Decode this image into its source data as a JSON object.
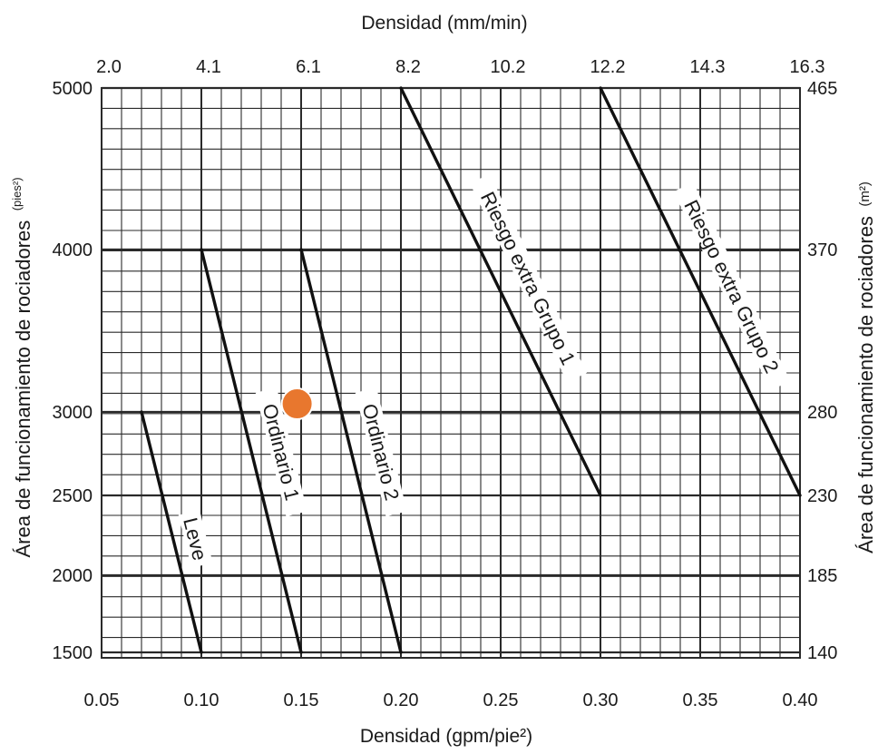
{
  "chart_data": {
    "type": "line",
    "title": "",
    "x_bottom": {
      "label": "Densidad (gpm/pie²)",
      "range": [
        0.05,
        0.4
      ],
      "ticks": [
        0.05,
        0.1,
        0.15,
        0.2,
        0.25,
        0.3,
        0.35,
        0.4
      ],
      "tick_labels": [
        "0.05",
        "0.10",
        "0.15",
        "0.20",
        "0.25",
        "0.30",
        "0.35",
        "0.40"
      ]
    },
    "x_top": {
      "label": "Densidad (mm/min)",
      "tick_labels": [
        "2.0",
        "4.1",
        "6.1",
        "8.2",
        "10.2",
        "12.2",
        "14.3",
        "16.3"
      ]
    },
    "y_left": {
      "label": "Área de funcionamiento de rociadores",
      "unit": "(pies²)",
      "range": [
        1500,
        5000
      ],
      "ticks": [
        1500,
        2000,
        2500,
        3000,
        4000,
        5000
      ],
      "tick_labels": [
        "1500",
        "2000",
        "2500",
        "3000",
        "4000",
        "5000"
      ]
    },
    "y_right": {
      "label": "Área de funcionamiento de rociadores",
      "unit": "(m²)",
      "tick_labels": [
        "140",
        "185",
        "230",
        "280",
        "370",
        "465"
      ]
    },
    "grid": true,
    "series": [
      {
        "name": "Leve",
        "x": [
          0.07,
          0.1
        ],
        "y": [
          3000,
          1500
        ]
      },
      {
        "name": "Ordinario 1",
        "x": [
          0.1,
          0.15
        ],
        "y": [
          4000,
          1500
        ]
      },
      {
        "name": "Ordinario 2",
        "x": [
          0.15,
          0.2
        ],
        "y": [
          4000,
          1500
        ]
      },
      {
        "name": "Riesgo extra Grupo 1",
        "x": [
          0.2,
          0.3
        ],
        "y": [
          5000,
          2500
        ]
      },
      {
        "name": "Riesgo extra Grupo 2",
        "x": [
          0.3,
          0.4
        ],
        "y": [
          5000,
          2500
        ]
      }
    ],
    "marker": {
      "x": 0.148,
      "y": 3050,
      "color": "#e8772e"
    },
    "colors": {
      "grid": "#2a2a2a",
      "curve": "#111111"
    }
  }
}
